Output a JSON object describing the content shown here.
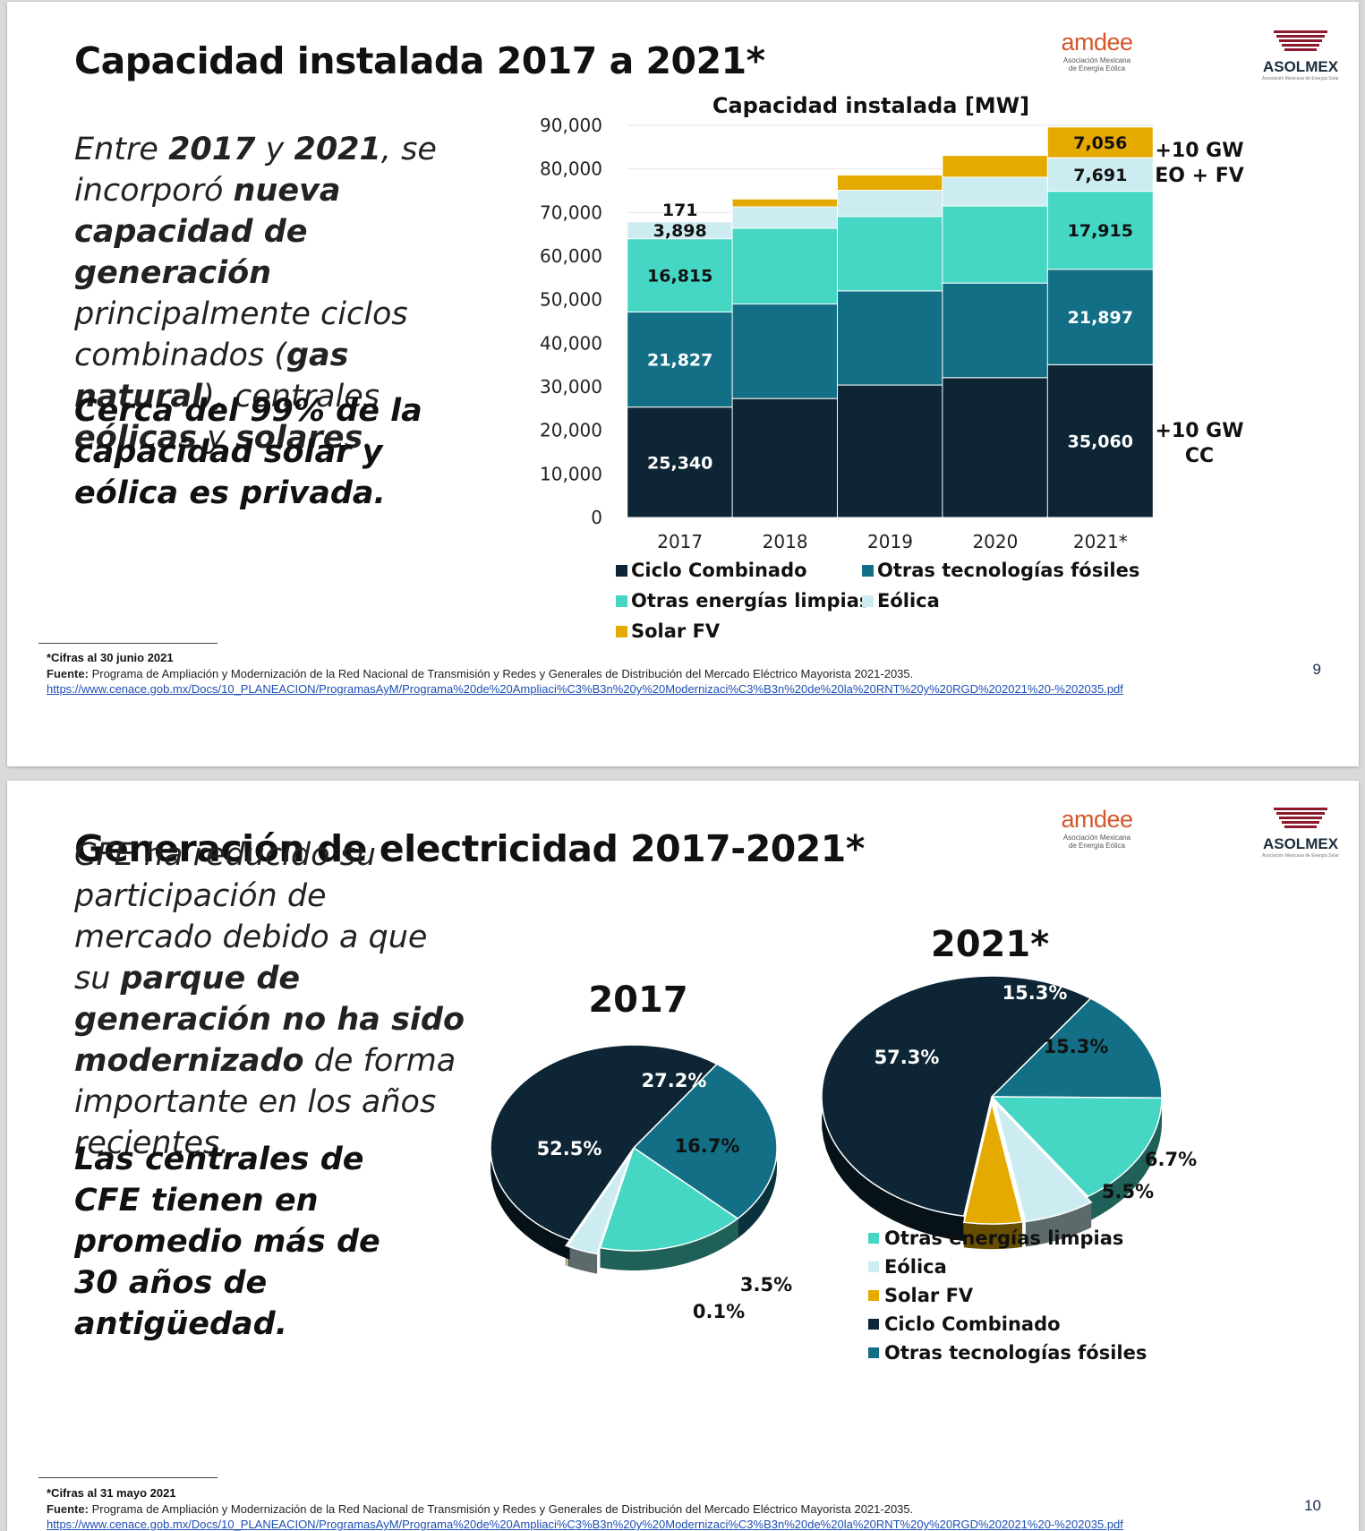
{
  "slide1": {
    "title": "Capacidad instalada 2017 a 2021*",
    "body_parts": [
      {
        "t": "Entre ",
        "b": false
      },
      {
        "t": "2017",
        "b": true
      },
      {
        "t": " y ",
        "b": false
      },
      {
        "t": "2021",
        "b": true
      },
      {
        "t": ", se incorporó ",
        "b": false
      },
      {
        "t": "nueva capacidad de generación",
        "b": true
      },
      {
        "t": " principalmente ciclos combinados (",
        "b": false
      },
      {
        "t": "gas natural",
        "b": true
      },
      {
        "t": "), centrales ",
        "b": false
      },
      {
        "t": "eólicas",
        "b": true
      },
      {
        "t": " y ",
        "b": false
      },
      {
        "t": "solares",
        "b": true
      },
      {
        "t": ".",
        "b": false
      }
    ],
    "emphasis": "Cerca del 99% de la capacidad solar y eólica es privada.",
    "footnote": "*Cifras al 30 junio 2021",
    "source_label": "Fuente:",
    "source_text": " Programa de Ampliación y Modernización de la Red Nacional de Transmisión y Redes y Generales de Distribución del Mercado Eléctrico Mayorista 2021-2035.",
    "url": "https://www.cenace.gob.mx/Docs/10_PLANEACION/ProgramasAyM/Programa%20de%20Ampliaci%C3%B3n%20y%20Modernizaci%C3%B3n%20de%20la%20RNT%20y%20RGD%202021%20-%202035.pdf",
    "page": "9",
    "annotations": [
      {
        "line1": "+10 GW",
        "line2": "EO + FV"
      },
      {
        "line1": "+10 GW",
        "line2": "CC"
      }
    ]
  },
  "slide2": {
    "title": "Generación de electricidad 2017-2021*",
    "body_parts": [
      {
        "t": "CFE ha reducido su participación de mercado debido a que su ",
        "b": false
      },
      {
        "t": "parque de generación no ha sido modernizado",
        "b": true
      },
      {
        "t": " de forma importante en los años recientes.",
        "b": false
      }
    ],
    "emphasis": "Las centrales de CFE tienen en promedio más de 30 años de antigüedad.",
    "footnote": "*Cifras al 31 mayo 2021",
    "source_label": "Fuente:",
    "source_text": " Programa de Ampliación y Modernización de la Red Nacional de Transmisión y Redes y Generales de Distribución del Mercado Eléctrico Mayorista 2021-2035.",
    "url": "https://www.cenace.gob.mx/Docs/10_PLANEACION/ProgramasAyM/Programa%20de%20Ampliaci%C3%B3n%20y%20Modernizaci%C3%B3n%20de%20la%20RNT%20y%20RGD%202021%20-%202035.pdf",
    "page": "10"
  },
  "logos": {
    "amdee": "amdee",
    "amdee_sub1": "Asociación Mexicana",
    "amdee_sub2": "de Energía Eólica",
    "asolmex": "ASOLMEX",
    "asolmex_sub": "Asociación Mexicana de Energía Solar"
  },
  "colors": {
    "ciclo_combinado": "#0d2535",
    "otras_fosiles": "#136f86",
    "otras_limpias": "#45d6c4",
    "eolica": "#cdecf1",
    "solar": "#e5aa00"
  },
  "chart_data": [
    {
      "type": "bar",
      "stacked": true,
      "title": "Capacidad instalada [MW]",
      "categories": [
        "2017",
        "2018",
        "2019",
        "2020",
        "2021*"
      ],
      "ylim": [
        0,
        90000
      ],
      "yticks": [
        "0",
        "10,000",
        "20,000",
        "30,000",
        "40,000",
        "50,000",
        "60,000",
        "70,000",
        "80,000",
        "90,000"
      ],
      "legend_position": "bottom",
      "series": [
        {
          "name": "Ciclo Combinado",
          "color": "#0d2535",
          "values": [
            25340,
            27300,
            30400,
            32100,
            35060
          ],
          "labels": [
            "25,340",
            "",
            "",
            "",
            "35,060"
          ]
        },
        {
          "name": "Otras tecnologías fósiles",
          "color": "#136f86",
          "values": [
            21827,
            21700,
            21600,
            21700,
            21897
          ],
          "labels": [
            "21,827",
            "",
            "",
            "",
            "21,897"
          ]
        },
        {
          "name": "Otras energías limpias",
          "color": "#45d6c4",
          "values": [
            16815,
            17400,
            17100,
            17700,
            17915
          ],
          "labels": [
            "16,815",
            "",
            "",
            "",
            "17,915"
          ]
        },
        {
          "name": "Eólica",
          "color": "#cdecf1",
          "values": [
            3898,
            4900,
            6000,
            6600,
            7691
          ],
          "labels": [
            "3,898",
            "",
            "",
            "",
            "7,691"
          ]
        },
        {
          "name": "Solar FV",
          "color": "#e5aa00",
          "values": [
            171,
            1800,
            3500,
            5000,
            7056
          ],
          "labels": [
            "171",
            "",
            "",
            "",
            "7,056"
          ]
        }
      ]
    },
    {
      "type": "pie",
      "title": "2017",
      "slices": [
        {
          "name": "Otras tecnologías fósiles",
          "value": 27.2,
          "label": "27.2%",
          "color": "#136f86"
        },
        {
          "name": "Otras energías limpias",
          "value": 16.7,
          "label": "16.7%",
          "color": "#45d6c4"
        },
        {
          "name": "Eólica",
          "value": 3.5,
          "label": "3.5%",
          "color": "#cdecf1"
        },
        {
          "name": "Solar FV",
          "value": 0.1,
          "label": "0.1%",
          "color": "#e5aa00"
        },
        {
          "name": "Ciclo Combinado",
          "value": 52.5,
          "label": "52.5%",
          "color": "#0d2535"
        }
      ]
    },
    {
      "type": "pie",
      "title": "2021*",
      "legend_position": "bottom",
      "slices": [
        {
          "name": "Otras tecnologías fósiles",
          "value": 15.3,
          "label": "15.3%",
          "color": "#136f86"
        },
        {
          "name": "Otras energías limpias",
          "value": 15.3,
          "label": "15.3%",
          "color": "#45d6c4"
        },
        {
          "name": "Eólica",
          "value": 6.7,
          "label": "6.7%",
          "color": "#cdecf1"
        },
        {
          "name": "Solar FV",
          "value": 5.5,
          "label": "5.5%",
          "color": "#e5aa00"
        },
        {
          "name": "Ciclo Combinado",
          "value": 57.3,
          "label": "57.3%",
          "color": "#0d2535"
        }
      ],
      "legend_order": [
        "Otras energías limpias",
        "Eólica",
        "Solar FV",
        "Ciclo Combinado",
        "Otras tecnologías fósiles"
      ]
    }
  ]
}
